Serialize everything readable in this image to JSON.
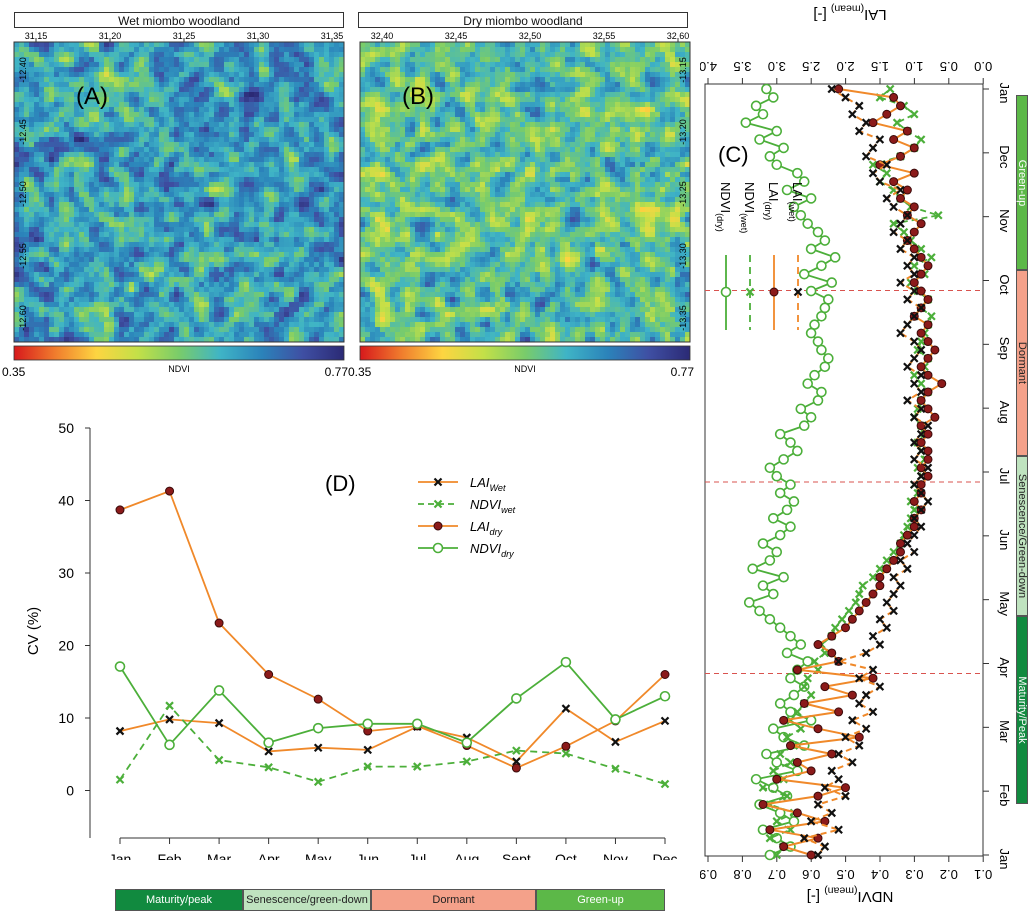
{
  "maps": {
    "a": {
      "title": "Wet miombo woodland",
      "panel_label": "(A)",
      "x_ticks": [
        "31.15",
        "31.20",
        "31.25",
        "31.30",
        "31.35"
      ],
      "y_ticks": [
        "-12.40",
        "-12.45",
        "-12.50",
        "-12.55",
        "-12.60"
      ],
      "colorbar_min": "0.35",
      "colorbar_max": "0.77",
      "colorbar_label": "NDVI"
    },
    "b": {
      "title": "Dry miombo woodland",
      "panel_label": "(B)",
      "x_ticks": [
        "32.40",
        "32.45",
        "32.50",
        "32.55",
        "32.60"
      ],
      "y_ticks": [
        "-13.15",
        "-13.20",
        "-13.25",
        "-13.30",
        "-13.35"
      ],
      "colorbar_min": "0.35",
      "colorbar_max": "0.77",
      "colorbar_label": "NDVI"
    },
    "colorbar_colors": [
      "#d7191c",
      "#f07c2d",
      "#fdd541",
      "#c3e048",
      "#79cc6a",
      "#3fb4c6",
      "#2b83ba",
      "#3f4fa3",
      "#2b2a75"
    ]
  },
  "chart_data": [
    {
      "type": "line",
      "panel_label": "(D)",
      "title": "",
      "xlabel": "",
      "ylabel": "CV (%)",
      "categories": [
        "Jan",
        "Feb",
        "Mar",
        "Apr",
        "May",
        "Jun",
        "Jul",
        "Aug",
        "Sept",
        "Oct",
        "Nov",
        "Dec"
      ],
      "ylim": [
        -6,
        50
      ],
      "yticks": [
        0,
        10,
        20,
        30,
        40,
        50
      ],
      "legend_position": "top-right",
      "series": [
        {
          "name": "LAI",
          "sub": "Wet",
          "color": "#f0892a",
          "dash": false,
          "marker": "x",
          "values": [
            8.2,
            9.8,
            9.3,
            5.4,
            5.9,
            5.6,
            8.8,
            7.3,
            4.0,
            11.3,
            6.7,
            9.6
          ]
        },
        {
          "name": "NDVI",
          "sub": "wet",
          "color": "#4caf3a",
          "dash": true,
          "marker": "x",
          "values": [
            1.5,
            11.7,
            4.2,
            3.2,
            1.2,
            3.3,
            3.3,
            4.0,
            5.5,
            5.1,
            3.0,
            0.9
          ]
        },
        {
          "name": "LAI",
          "sub": "dry",
          "color": "#f0892a",
          "dash": false,
          "marker": "filled-circle",
          "values": [
            38.7,
            41.3,
            23.1,
            16.0,
            12.6,
            8.2,
            8.9,
            6.2,
            3.1,
            6.1,
            9.6,
            16.0
          ]
        },
        {
          "name": "NDVI",
          "sub": "dry",
          "color": "#4caf3a",
          "dash": false,
          "marker": "open-circle",
          "values": [
            17.1,
            6.3,
            13.8,
            6.6,
            8.6,
            9.2,
            9.2,
            6.6,
            12.7,
            17.7,
            9.8,
            13.0
          ]
        }
      ]
    },
    {
      "type": "line",
      "panel_label": "(C)",
      "title": "",
      "orientation": "rotated",
      "xlabel_top": "LAI",
      "xlabel_top_sub": "(mean)",
      "xlabel_top_unit": " [-]",
      "xlabel_bottom": "NDVI",
      "xlabel_bottom_sub": "(mean)",
      "xlabel_bottom_unit": " [-]",
      "lai_ticks": [
        "4.0",
        "3.5",
        "3.0",
        "2.5",
        "2.0",
        "1.5",
        "1.0",
        "0.5",
        "0.0"
      ],
      "ndvi_ticks": [
        "0.9",
        "0.8",
        "0.7",
        "0.6",
        "0.5",
        "0.4",
        "0.3",
        "0.2",
        "0.1"
      ],
      "month_labels": [
        "Jan",
        "Feb",
        "Mar",
        "Apr",
        "May",
        "Jun",
        "Jul",
        "Aug",
        "Sep",
        "Oct",
        "Nov",
        "Dec",
        "Jan"
      ],
      "ndvi_range": [
        0.1,
        0.9
      ],
      "lai_range": [
        0,
        4
      ],
      "phase_boundaries": [
        "Apr",
        "Jul",
        "Oct"
      ],
      "legend_position": "upper-left",
      "series": [
        {
          "name": "NDVI",
          "sub": "(dry)",
          "color": "#4caf3a",
          "dash": false,
          "marker": "open-circle",
          "variable": "ndvi",
          "values": [
            0.72,
            0.66,
            0.7,
            0.74,
            0.65,
            0.69,
            0.75,
            0.67,
            0.71,
            0.76,
            0.64,
            0.7,
            0.73,
            0.62,
            0.68,
            0.71,
            0.6,
            0.66,
            0.69,
            0.65,
            0.62,
            0.66,
            0.64,
            0.61,
            0.67,
            0.63,
            0.66,
            0.69,
            0.72,
            0.75,
            0.78,
            0.71,
            0.74,
            0.68,
            0.77,
            0.72,
            0.7,
            0.74,
            0.69,
            0.66,
            0.71,
            0.67,
            0.65,
            0.69,
            0.66,
            0.7,
            0.72,
            0.68,
            0.64,
            0.66,
            0.69,
            0.62,
            0.6,
            0.63,
            0.58,
            0.57,
            0.61,
            0.59,
            0.56,
            0.55,
            0.57,
            0.58,
            0.6,
            0.59,
            0.57,
            0.56,
            0.55,
            0.6,
            0.54,
            0.62,
            0.57,
            0.53,
            0.6,
            0.56,
            0.58,
            0.61,
            0.63,
            0.65,
            0.6,
            0.67,
            0.62,
            0.64,
            0.7,
            0.72,
            0.68,
            0.75,
            0.7,
            0.79,
            0.74,
            0.76,
            0.71,
            0.73
          ]
        },
        {
          "name": "NDVI",
          "sub": "(wet)",
          "color": "#4caf3a",
          "dash": true,
          "marker": "x",
          "variable": "ndvi",
          "values": [
            0.7,
            0.68,
            0.72,
            0.66,
            0.7,
            0.65,
            0.72,
            0.67,
            0.74,
            0.68,
            0.71,
            0.66,
            0.69,
            0.65,
            0.67,
            0.63,
            0.66,
            0.64,
            0.62,
            0.6,
            0.62,
            0.61,
            0.58,
            0.59,
            0.56,
            0.57,
            0.54,
            0.53,
            0.51,
            0.49,
            0.47,
            0.46,
            0.45,
            0.42,
            0.4,
            0.38,
            0.36,
            0.34,
            0.33,
            0.32,
            0.31,
            0.3,
            0.31,
            0.29,
            0.3,
            0.28,
            0.29,
            0.27,
            0.28,
            0.29,
            0.27,
            0.28,
            0.3,
            0.29,
            0.28,
            0.26,
            0.28,
            0.3,
            0.27,
            0.26,
            0.29,
            0.28,
            0.27,
            0.26,
            0.25,
            0.28,
            0.26,
            0.29,
            0.31,
            0.27,
            0.3,
            0.25,
            0.28,
            0.31,
            0.33,
            0.36,
            0.23,
            0.31,
            0.34,
            0.36,
            0.4,
            0.38,
            0.42,
            0.34,
            0.3,
            0.28,
            0.32,
            0.35,
            0.3,
            0.33,
            0.4,
            0.37
          ]
        },
        {
          "name": "LAI",
          "sub": "(dry)",
          "color": "#f0892a",
          "dash": false,
          "marker": "filled-circle",
          "variable": "lai",
          "values": [
            2.5,
            2.9,
            2.4,
            3.1,
            2.3,
            2.7,
            3.2,
            2.4,
            2.0,
            3.0,
            2.5,
            2.7,
            2.2,
            2.8,
            1.8,
            2.4,
            2.9,
            2.1,
            2.6,
            1.9,
            2.3,
            1.6,
            2.7,
            2.1,
            2.2,
            2.4,
            2.2,
            2.0,
            1.9,
            1.8,
            1.7,
            1.6,
            1.5,
            1.5,
            1.4,
            1.3,
            1.2,
            1.2,
            1.1,
            1.0,
            1.0,
            0.9,
            1.0,
            0.9,
            0.9,
            0.8,
            0.9,
            0.8,
            0.8,
            0.9,
            0.8,
            0.9,
            0.7,
            0.8,
            0.9,
            0.8,
            0.6,
            0.8,
            0.9,
            0.8,
            0.7,
            0.8,
            0.9,
            0.8,
            1.0,
            0.9,
            0.8,
            0.9,
            1.0,
            0.9,
            0.8,
            0.9,
            1.0,
            1.1,
            1.0,
            0.9,
            1.1,
            1.0,
            1.2,
            1.1,
            1.3,
            1.0,
            1.5,
            1.2,
            1.0,
            1.3,
            1.1,
            1.6,
            1.4,
            1.2,
            1.3,
            2.1
          ]
        },
        {
          "name": "LAI",
          "sub": "(wet)",
          "color": "#f0892a",
          "dash": true,
          "marker": "x",
          "variable": "lai",
          "values": [
            2.4,
            2.3,
            2.6,
            2.1,
            2.5,
            2.2,
            2.4,
            2.0,
            2.3,
            2.1,
            2.2,
            1.9,
            2.1,
            1.8,
            2.0,
            1.7,
            1.9,
            1.6,
            1.8,
            1.7,
            1.5,
            1.8,
            1.6,
            2.1,
            1.7,
            1.5,
            1.6,
            1.4,
            1.5,
            1.3,
            1.4,
            1.3,
            1.2,
            1.3,
            1.1,
            1.2,
            1.0,
            1.1,
            1.0,
            0.9,
            1.0,
            0.9,
            0.8,
            0.9,
            1.0,
            0.9,
            0.8,
            1.0,
            0.9,
            1.0,
            0.9,
            0.8,
            1.0,
            0.9,
            1.1,
            0.9,
            1.0,
            0.9,
            1.1,
            1.0,
            0.9,
            1.0,
            1.2,
            1.1,
            1.0,
            0.9,
            1.1,
            1.0,
            1.2,
            1.0,
            1.1,
            1.0,
            1.2,
            1.1,
            1.3,
            1.2,
            1.1,
            1.3,
            1.4,
            1.2,
            1.5,
            1.6,
            1.4,
            1.7,
            1.6,
            1.5,
            1.8,
            1.7,
            1.9,
            1.8,
            2.0,
            2.2
          ]
        }
      ]
    }
  ],
  "phases_horizontal": [
    {
      "label": "Maturity/peak",
      "color": "#118a3f",
      "text_color": "#ffffff"
    },
    {
      "label": "Senescence/green-down",
      "color": "#bfe3bf",
      "text_color": "#222222"
    },
    {
      "label": "Dormant",
      "color": "#f4a18a",
      "text_color": "#222222"
    },
    {
      "label": "Green-up",
      "color": "#5cb848",
      "text_color": "#ffffff"
    }
  ],
  "phases_vertical": [
    {
      "label": "Green-up",
      "color": "#5cb848",
      "text_color": "#ffffff"
    },
    {
      "label": "Dormant",
      "color": "#f4a18a",
      "text_color": "#222222"
    },
    {
      "label": "Senescence/Green-down",
      "color": "#bfe3bf",
      "text_color": "#222222"
    },
    {
      "label": "Maturity/Peak",
      "color": "#118a3f",
      "text_color": "#ffffff"
    }
  ]
}
